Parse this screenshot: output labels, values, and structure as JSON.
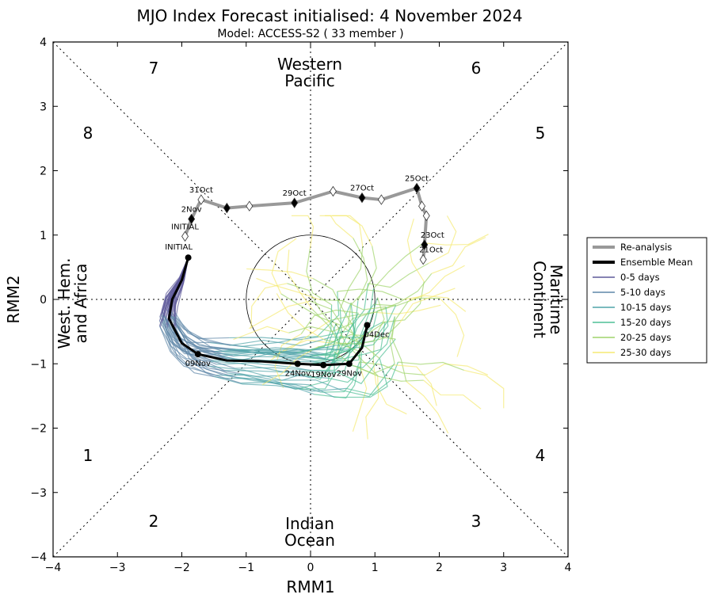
{
  "chart_data": {
    "type": "scatter",
    "title": "MJO Index Forecast initialised:  4  November 2024",
    "subtitle": "Model: ACCESS-S2 ( 33 member )",
    "xlabel": "RMM1",
    "ylabel": "RMM2",
    "xlim": [
      -4,
      4
    ],
    "ylim": [
      -4,
      4
    ],
    "xticks": [
      "−4",
      "−3",
      "−2",
      "−1",
      "0",
      "1",
      "2",
      "3",
      "4"
    ],
    "yticks": [
      "−4",
      "−3",
      "−2",
      "−1",
      "0",
      "1",
      "2",
      "3",
      "4"
    ],
    "phase_numbers": [
      "1",
      "2",
      "3",
      "4",
      "5",
      "6",
      "7",
      "8"
    ],
    "regions": {
      "top": "Western Pacific",
      "bottom": "Indian Ocean",
      "left": "West. Hem. and Africa",
      "right": "Maritime Continent"
    },
    "legend": {
      "position": "right",
      "entries": [
        "Re-analysis",
        "Ensemble Mean",
        "0-5 days",
        "5-10 days",
        "10-15 days",
        "15-20 days",
        "20-25 days",
        "25-30 days"
      ],
      "colors": [
        "#999999",
        "#000000",
        "#5e5a9a",
        "#5f87a8",
        "#4fa3a8",
        "#4fbf95",
        "#9fd46b",
        "#f5ea72"
      ]
    },
    "reanalysis": {
      "x": [
        1.75,
        1.77,
        1.8,
        1.73,
        1.65,
        1.1,
        0.8,
        0.35,
        -0.25,
        -0.95,
        -1.3,
        -1.7,
        -1.85,
        -1.95
      ],
      "y": [
        0.62,
        0.85,
        1.3,
        1.45,
        1.73,
        1.55,
        1.58,
        1.68,
        1.5,
        1.45,
        1.42,
        1.55,
        1.25,
        0.98
      ],
      "filled": [
        false,
        true,
        false,
        false,
        true,
        false,
        true,
        false,
        true,
        false,
        true,
        false,
        true,
        false
      ],
      "labels": [
        {
          "index": 0,
          "text": "21Oct"
        },
        {
          "index": 1,
          "text": "23Oct"
        },
        {
          "index": 4,
          "text": "25Oct"
        },
        {
          "index": 6,
          "text": "27Oct"
        },
        {
          "index": 8,
          "text": "29Oct"
        },
        {
          "index": 11,
          "text": "31Oct"
        },
        {
          "index": 12,
          "text": "2Nov"
        },
        {
          "index": 13,
          "text": "INITIAL"
        }
      ]
    },
    "ensemble_mean": {
      "x": [
        -1.9,
        -2.0,
        -2.15,
        -2.2,
        -2.0,
        -1.75,
        -1.3,
        -0.8,
        -0.2,
        0.2,
        0.6,
        0.8,
        0.88
      ],
      "y": [
        0.65,
        0.3,
        0.0,
        -0.3,
        -0.68,
        -0.85,
        -0.95,
        -0.96,
        -1.0,
        -1.02,
        -1.0,
        -0.75,
        -0.4
      ],
      "markers": [
        {
          "index": 0,
          "text": "INITIAL"
        },
        {
          "index": 5,
          "text": "09Nov"
        },
        {
          "index": 8,
          "text": "24Nov"
        },
        {
          "index": 9,
          "text": "19Nov"
        },
        {
          "index": 10,
          "text": "29Nov"
        },
        {
          "index": 12,
          "text": "04Dec"
        }
      ]
    },
    "amplitude_circle_radius": 1
  }
}
